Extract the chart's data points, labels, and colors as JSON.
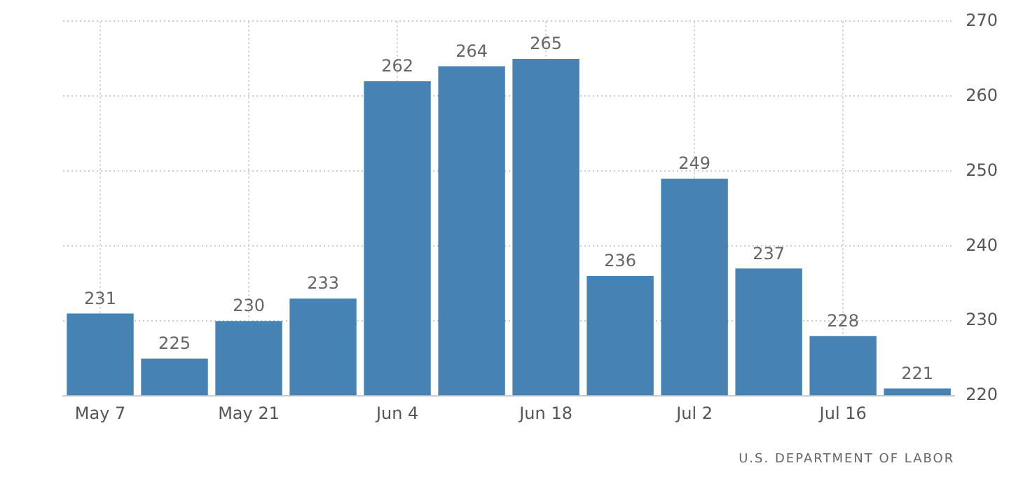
{
  "chart_data": {
    "type": "bar",
    "categories": [
      "May 7",
      null,
      "May 21",
      null,
      "Jun 4",
      null,
      "Jun 18",
      null,
      "Jul 2",
      null,
      "Jul 16",
      null
    ],
    "values": [
      231,
      225,
      230,
      233,
      262,
      264,
      265,
      236,
      249,
      237,
      228,
      221
    ],
    "color": "#4682b4",
    "ylim": [
      220,
      270
    ],
    "yticks": [
      220,
      230,
      240,
      250,
      260,
      270
    ],
    "grid": true,
    "data_labels": true,
    "annotations": [
      "U.S. DEPARTMENT OF LABOR"
    ]
  }
}
